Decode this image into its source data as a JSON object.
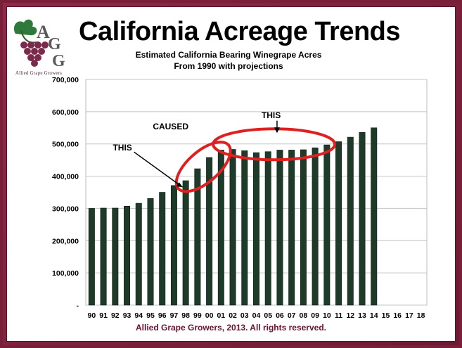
{
  "title": "California Acreage Trends",
  "subtitle_line1": "Estimated California Bearing Winegrape Acres",
  "subtitle_line2": "From 1990 with projections",
  "footer": "Allied Grape Growers, 2013.  All rights reserved.",
  "logo": {
    "letters": "AGG",
    "text": "Allied Grape Growers",
    "grape_color": "#7a2a4a",
    "leaf_color": "#2f7a3a"
  },
  "colors": {
    "frame": "#7a1f3a",
    "bar": "#1e3a28",
    "highlight": "#e02020",
    "footer": "#6a1030"
  },
  "annotations": [
    {
      "label": "THIS",
      "arrow": "right"
    },
    {
      "label": "CAUSED",
      "arrow": "none"
    },
    {
      "label": "THIS",
      "arrow": "down"
    }
  ],
  "chart_data": {
    "type": "bar",
    "title": "Estimated California Bearing Winegrape Acres",
    "subtitle": "From 1990 with projections",
    "xlabel": "",
    "ylabel": "",
    "ylim": [
      0,
      700000
    ],
    "ytick_labels": [
      "-",
      "100,000",
      "200,000",
      "300,000",
      "400,000",
      "500,000",
      "600,000",
      "700,000"
    ],
    "grid": true,
    "categories": [
      "90",
      "91",
      "92",
      "93",
      "94",
      "95",
      "96",
      "97",
      "98",
      "99",
      "00",
      "01",
      "02",
      "03",
      "04",
      "05",
      "06",
      "07",
      "08",
      "09",
      "10",
      "11",
      "12",
      "13",
      "14",
      "15",
      "16",
      "17",
      "18"
    ],
    "values": [
      300000,
      301000,
      301000,
      307000,
      316000,
      331000,
      350000,
      371000,
      386000,
      423000,
      458000,
      481000,
      483000,
      479000,
      473000,
      476000,
      481000,
      481000,
      482000,
      488000,
      497000,
      507000,
      521000,
      536000,
      550000,
      null,
      null,
      null,
      null
    ],
    "highlights": [
      {
        "label": "THIS",
        "categories": [
          "97",
          "98"
        ]
      },
      {
        "label": "CAUSED",
        "categories": [
          "98",
          "99",
          "00",
          "01"
        ]
      },
      {
        "label": "THIS",
        "categories": [
          "02",
          "03",
          "04",
          "05",
          "06",
          "07",
          "08",
          "09"
        ]
      }
    ]
  }
}
